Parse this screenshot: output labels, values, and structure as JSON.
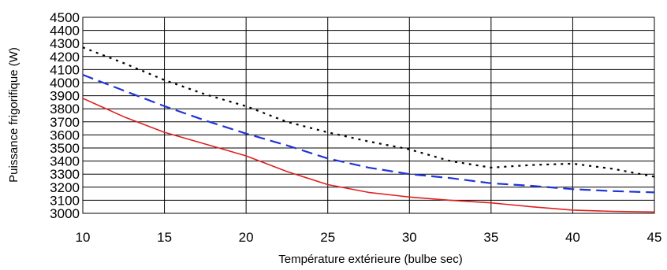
{
  "chart_data": {
    "type": "line",
    "title": "",
    "xlabel": "Température extérieure (bulbe sec)",
    "ylabel": "Puissance frigorifique (W)",
    "xlim": [
      10,
      45
    ],
    "ylim": [
      3000,
      4500
    ],
    "xticks": [
      "10",
      "15",
      "20",
      "25",
      "30",
      "35",
      "40",
      "45"
    ],
    "yticks": [
      "3000",
      "3100",
      "3200",
      "3300",
      "3400",
      "3500",
      "3600",
      "3700",
      "3800",
      "3900",
      "4000",
      "4100",
      "4200",
      "4300",
      "4400",
      "4500"
    ],
    "grid": true,
    "legend": "none",
    "series": [
      {
        "color": "#000000",
        "style": "dotted",
        "points": [
          [
            10,
            4270
          ],
          [
            12.5,
            4150
          ],
          [
            15,
            4020
          ],
          [
            17.5,
            3910
          ],
          [
            20,
            3820
          ],
          [
            22.5,
            3700
          ],
          [
            25,
            3620
          ],
          [
            27.5,
            3550
          ],
          [
            30,
            3490
          ],
          [
            32.5,
            3400
          ],
          [
            35,
            3350
          ],
          [
            37.5,
            3370
          ],
          [
            40,
            3380
          ],
          [
            42.5,
            3340
          ],
          [
            45,
            3280
          ]
        ]
      },
      {
        "color": "#1f35d6",
        "style": "dashed",
        "points": [
          [
            10,
            4060
          ],
          [
            12.5,
            3940
          ],
          [
            15,
            3820
          ],
          [
            17.5,
            3710
          ],
          [
            20,
            3610
          ],
          [
            22.5,
            3520
          ],
          [
            25,
            3420
          ],
          [
            27.5,
            3350
          ],
          [
            30,
            3300
          ],
          [
            32.5,
            3270
          ],
          [
            35,
            3230
          ],
          [
            37.5,
            3210
          ],
          [
            40,
            3185
          ],
          [
            42.5,
            3170
          ],
          [
            45,
            3160
          ]
        ]
      },
      {
        "color": "#e02020",
        "style": "solid",
        "points": [
          [
            10,
            3880
          ],
          [
            12.5,
            3740
          ],
          [
            15,
            3620
          ],
          [
            17.5,
            3530
          ],
          [
            20,
            3440
          ],
          [
            22.5,
            3320
          ],
          [
            25,
            3220
          ],
          [
            27.5,
            3160
          ],
          [
            30,
            3125
          ],
          [
            32.5,
            3100
          ],
          [
            35,
            3080
          ],
          [
            37.5,
            3050
          ],
          [
            40,
            3025
          ],
          [
            42.5,
            3015
          ],
          [
            45,
            3010
          ]
        ]
      }
    ]
  }
}
